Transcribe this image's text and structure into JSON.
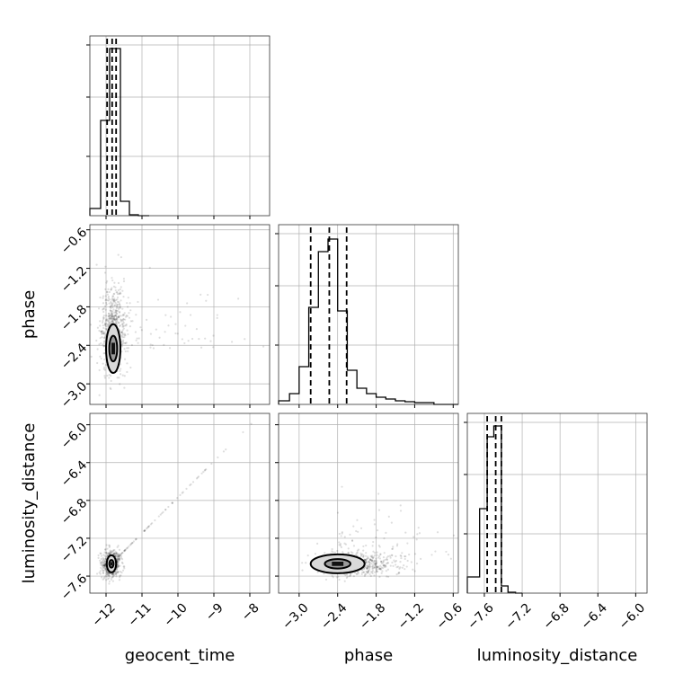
{
  "chart_data": {
    "type": "corner",
    "title": "",
    "parameters": [
      "geocent_time",
      "phase",
      "luminosity_distance"
    ],
    "grid": true,
    "ranges": {
      "geocent_time": [
        -12.45,
        -7.45
      ],
      "phase": [
        -3.32,
        -0.52
      ],
      "luminosity_distance": [
        -7.78,
        -5.88
      ]
    },
    "ticks": {
      "geocent_time": {
        "values": [
          -12,
          -11,
          -10,
          -9,
          -8
        ],
        "labels": [
          "−12",
          "−11",
          "−10",
          "−9",
          "−8"
        ]
      },
      "phase": {
        "values": [
          -3.0,
          -2.4,
          -1.8,
          -1.2,
          -0.6
        ],
        "labels": [
          "−3.0",
          "−2.4",
          "−1.8",
          "−1.2",
          "−0.6"
        ]
      },
      "luminosity_distance": {
        "values": [
          -7.6,
          -7.2,
          -6.8,
          -6.4,
          -6.0
        ],
        "labels": [
          "−7.6",
          "−7.2",
          "−6.8",
          "−6.4",
          "−6.0"
        ]
      }
    },
    "histograms": [
      {
        "parameter": "geocent_time",
        "bin_edges": [
          -12.45,
          -12.15,
          -11.9,
          -11.6,
          -11.35,
          -11.1,
          -10.8
        ],
        "counts": [
          0.04,
          0.53,
          0.93,
          0.08,
          0.005,
          0
        ],
        "quantiles": [
          -11.97,
          -11.83,
          -11.72
        ]
      },
      {
        "parameter": "phase",
        "bin_edges": [
          -3.32,
          -3.15,
          -3.0,
          -2.85,
          -2.7,
          -2.55,
          -2.4,
          -2.25,
          -2.1,
          -1.95,
          -1.8,
          -1.65,
          -1.5,
          -1.35,
          -1.2,
          -1.05,
          -0.9,
          -0.75,
          -0.52
        ],
        "counts": [
          0.02,
          0.06,
          0.21,
          0.54,
          0.85,
          0.92,
          0.52,
          0.19,
          0.09,
          0.06,
          0.04,
          0.03,
          0.02,
          0.015,
          0.01,
          0.01,
          0.0,
          0.0
        ],
        "quantiles": [
          -2.82,
          -2.53,
          -2.26
        ]
      },
      {
        "parameter": "luminosity_distance",
        "bin_edges": [
          -7.78,
          -7.65,
          -7.57,
          -7.5,
          -7.42,
          -7.35,
          -7.27,
          -7.2
        ],
        "counts": [
          0.09,
          0.47,
          0.87,
          0.93,
          0.04,
          0.005,
          0
        ],
        "quantiles": [
          -7.57,
          -7.48,
          -7.42
        ]
      }
    ],
    "pairs": [
      {
        "x": "geocent_time",
        "y": "phase",
        "center": [
          -11.8,
          -2.45
        ],
        "spread": [
          0.18,
          0.28
        ],
        "contours": [
          [
            0.11,
            0.2
          ],
          [
            0.2,
            0.38
          ]
        ]
      },
      {
        "x": "geocent_time",
        "y": "luminosity_distance",
        "center": [
          -11.85,
          -7.47
        ],
        "spread": [
          0.12,
          0.07
        ],
        "contours": [
          [
            0.06,
            0.04
          ],
          [
            0.13,
            0.09
          ]
        ]
      },
      {
        "x": "phase",
        "y": "luminosity_distance",
        "center": [
          -2.4,
          -7.47
        ],
        "spread": [
          0.22,
          0.06
        ],
        "contours": [
          [
            0.2,
            0.05
          ],
          [
            0.42,
            0.1
          ]
        ]
      }
    ]
  }
}
